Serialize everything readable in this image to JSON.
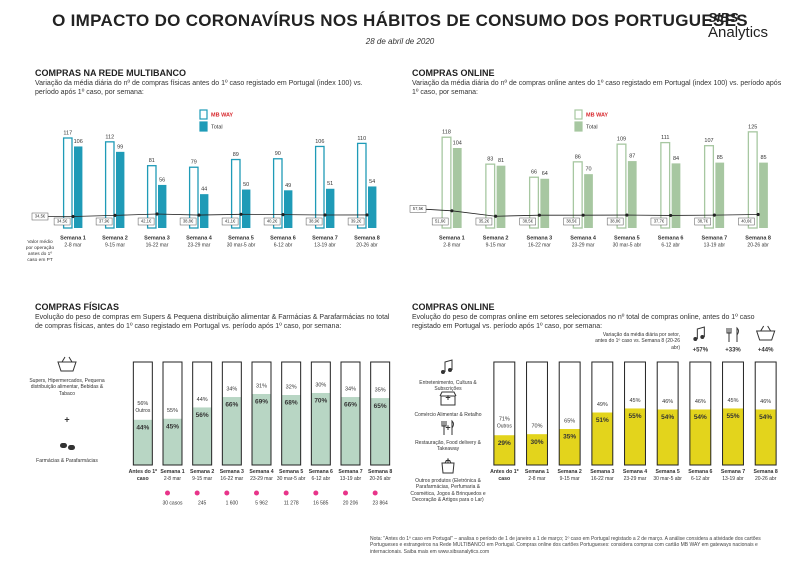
{
  "header": {
    "title": "O IMPACTO DO CORONAVÍRUS NOS HÁBITOS DE CONSUMO DOS PORTUGUESES",
    "date": "28 de abril de 2020",
    "logo_top": "SIBS",
    "logo_bottom": "Analytics"
  },
  "chart_data": [
    {
      "type": "bar_line",
      "title": "COMPRAS NA REDE MULTIBANCO",
      "subtitle": "Variação da média diária do nº de compras físicas antes do 1º caso registado em Portugal (index 100) vs. período após 1º caso, por semana:",
      "categories": [
        "Semana 1",
        "Semana 2",
        "Semana 3",
        "Semana 4",
        "Semana 5",
        "Semana 6",
        "Semana 7",
        "Semana 8"
      ],
      "category_dates": [
        "2-8 mar",
        "9-15 mar",
        "16-22 mar",
        "23-29 mar",
        "30 mar-5 abr",
        "6-12 abr",
        "13-19 abr",
        "20-26 abr"
      ],
      "series": [
        {
          "name": "MB WAY",
          "color": "#1f9bb7",
          "style": "outline",
          "values": [
            117,
            112,
            81,
            79,
            89,
            90,
            106,
            110
          ]
        },
        {
          "name": "Total",
          "color": "#1f9bb7",
          "style": "fill",
          "values": [
            106,
            99,
            56,
            44,
            50,
            49,
            51,
            54
          ]
        }
      ],
      "ylim": [
        0,
        130
      ],
      "line_values": [
        34.5,
        37.9,
        42.1,
        38.8,
        41.1,
        40.2,
        38.9,
        39.2
      ],
      "line_value_labels": [
        "34,5€",
        "37,9€",
        "42,1€",
        "38,8€",
        "41,1€",
        "40,2€",
        "38,9€",
        "39,2€"
      ],
      "baseline_value": 34.5,
      "baseline_value_label": "34,5€",
      "baseline_note": "Valor médio por operação antes do 1º caso em PT",
      "y2lim": [
        0,
        300
      ]
    },
    {
      "type": "bar_line",
      "title": "COMPRAS ONLINE",
      "subtitle": "Variação da média diária do nº de compras online antes do 1º caso registado em Portugal (index 100) vs. período após 1º caso, por semana:",
      "categories": [
        "Semana 1",
        "Semana 2",
        "Semana 3",
        "Semana 4",
        "Semana 5",
        "Semana 6",
        "Semana 7",
        "Semana 8"
      ],
      "category_dates": [
        "2-8 mar",
        "9-15 mar",
        "16-22 mar",
        "23-29 mar",
        "30 mar-5 abr",
        "6-12 abr",
        "13-19 abr",
        "20-26 abr"
      ],
      "series": [
        {
          "name": "MB WAY",
          "color": "#a7c7a1",
          "style": "outline",
          "values": [
            118,
            83,
            66,
            86,
            109,
            111,
            107,
            125
          ]
        },
        {
          "name": "Total",
          "color": "#a7c7a1",
          "style": "fill",
          "values": [
            104,
            81,
            64,
            70,
            87,
            84,
            85,
            85
          ]
        }
      ],
      "ylim": [
        0,
        130
      ],
      "line_values": [
        51.6,
        35.2,
        38.5,
        38.5,
        38.8,
        37.7,
        38.7,
        40.6
      ],
      "line_value_labels": [
        "51,6€",
        "35,2€",
        "38,5€",
        "38,5€",
        "38,8€",
        "37,7€",
        "38,7€",
        "40,6€"
      ],
      "baseline_value": 57.5,
      "baseline_value_label": "57,5€",
      "y2lim": [
        0,
        300
      ]
    },
    {
      "type": "stacked_bar_percent",
      "title": "COMPRAS FÍSICAS",
      "subtitle": "Evolução do peso de compras em Supers & Pequena distribuição alimentar & Farmácias & Parafarmácias no total de compras físicas, antes do 1º caso registado em Portugal vs. período após 1º caso, por semana:",
      "categories": [
        "Antes do 1º caso",
        "Semana 1",
        "Semana 2",
        "Semana 3",
        "Semana 4",
        "Semana 5",
        "Semana 6",
        "Semana 7",
        "Semana 8"
      ],
      "category_dates": [
        null,
        "2-8 mar",
        "9-15 mar",
        "16-22 mar",
        "23-29 mar",
        "30 mar-5 abr",
        "6-12 abr",
        "13-19 abr",
        "20-26 abr"
      ],
      "legend_items": [
        "Supers, Hipermercados, Pequena distribuição alimentar, Bebidas & Tabaco",
        "Farmácias & Parafarmácias"
      ],
      "series": [
        {
          "color": "#b8d6c4",
          "values": [
            44,
            45,
            56,
            66,
            69,
            68,
            70,
            66,
            65
          ],
          "value_labels": [
            "44%",
            "45%",
            "56%",
            "66%",
            "69%",
            "68%",
            "70%",
            "66%",
            "65%"
          ]
        },
        {
          "name": "Outros",
          "color": "#ffffff",
          "values": [
            56,
            55,
            44,
            34,
            31,
            32,
            30,
            34,
            35
          ],
          "value_labels": [
            "56%",
            "55%",
            "44%",
            "34%",
            "31%",
            "32%",
            "30%",
            "34%",
            "35%"
          ]
        }
      ],
      "ylim": [
        0,
        100
      ],
      "cases": {
        "values": [
          null,
          30,
          245,
          1600,
          5962,
          11278,
          16585,
          20206,
          23864
        ],
        "value_labels": [
          null,
          "30 casos",
          "245",
          "1 600",
          "5 962",
          "11 278",
          "16 585",
          "20 206",
          "23 864"
        ]
      }
    },
    {
      "type": "stacked_bar_percent",
      "title": "COMPRAS ONLINE",
      "subtitle": "Evolução do peso de compras online em setores selecionados no nº total de compras online, antes do 1º caso registado em Portugal vs. período após 1º caso, por semana:",
      "categories": [
        "Antes do 1º caso",
        "Semana 1",
        "Semana 2",
        "Semana 3",
        "Semana 4",
        "Semana 5",
        "Semana 6",
        "Semana 7",
        "Semana 8"
      ],
      "category_dates": [
        null,
        "2-8 mar",
        "9-15 mar",
        "16-22 mar",
        "23-29 mar",
        "30 mar-5 abr",
        "6-12 abr",
        "13-19 abr",
        "20-26 abr"
      ],
      "legend_items": [
        "Entretenimento, Cultura & Subscrições",
        "Comércio Alimentar & Retalho",
        "Restauração, Food delivery & Takeaway",
        "Outros produtos (Eletrónica & Parafarmácias, Perfumaria & Cosmética, Jogos & Brinquedos e Decoração & Artigos para o Lar)"
      ],
      "series": [
        {
          "color": "#e3d41c",
          "values": [
            29,
            30,
            35,
            51,
            55,
            54,
            54,
            55,
            54
          ],
          "value_labels": [
            "29%",
            "30%",
            "35%",
            "51%",
            "55%",
            "54%",
            "54%",
            "55%",
            "54%"
          ]
        },
        {
          "name": "Outros",
          "color": "#ffffff",
          "values": [
            71,
            70,
            65,
            49,
            45,
            46,
            46,
            45,
            46
          ],
          "value_labels": [
            "71%",
            "70%",
            "65%",
            "49%",
            "45%",
            "46%",
            "46%",
            "45%",
            "46%"
          ]
        }
      ],
      "ylim": [
        0,
        100
      ],
      "variation_note": "Variação da média diária por setor, antes do 1º caso vs. Semana 8 (20-26 abr)",
      "variations": [
        {
          "value": 57,
          "label": "+57%"
        },
        {
          "value": 33,
          "label": "+33%"
        },
        {
          "value": 44,
          "label": "+44%"
        }
      ]
    }
  ],
  "footnote": "Nota: \"Antes do 1º caso em Portugal\" – analisa o período de 1 de janeiro a 1 de março; 1º caso em Portugal registado a 2 de março. A análise considera a atividade dos cartões Portugueses e estrangeiros na Rede MULTIBANCO em Portugal. Compras online dos cartões Portugueses: considera compras com cartão MB WAY em gateways nacionais e internacionais. Saiba mais em www.sibsanalytics.com"
}
